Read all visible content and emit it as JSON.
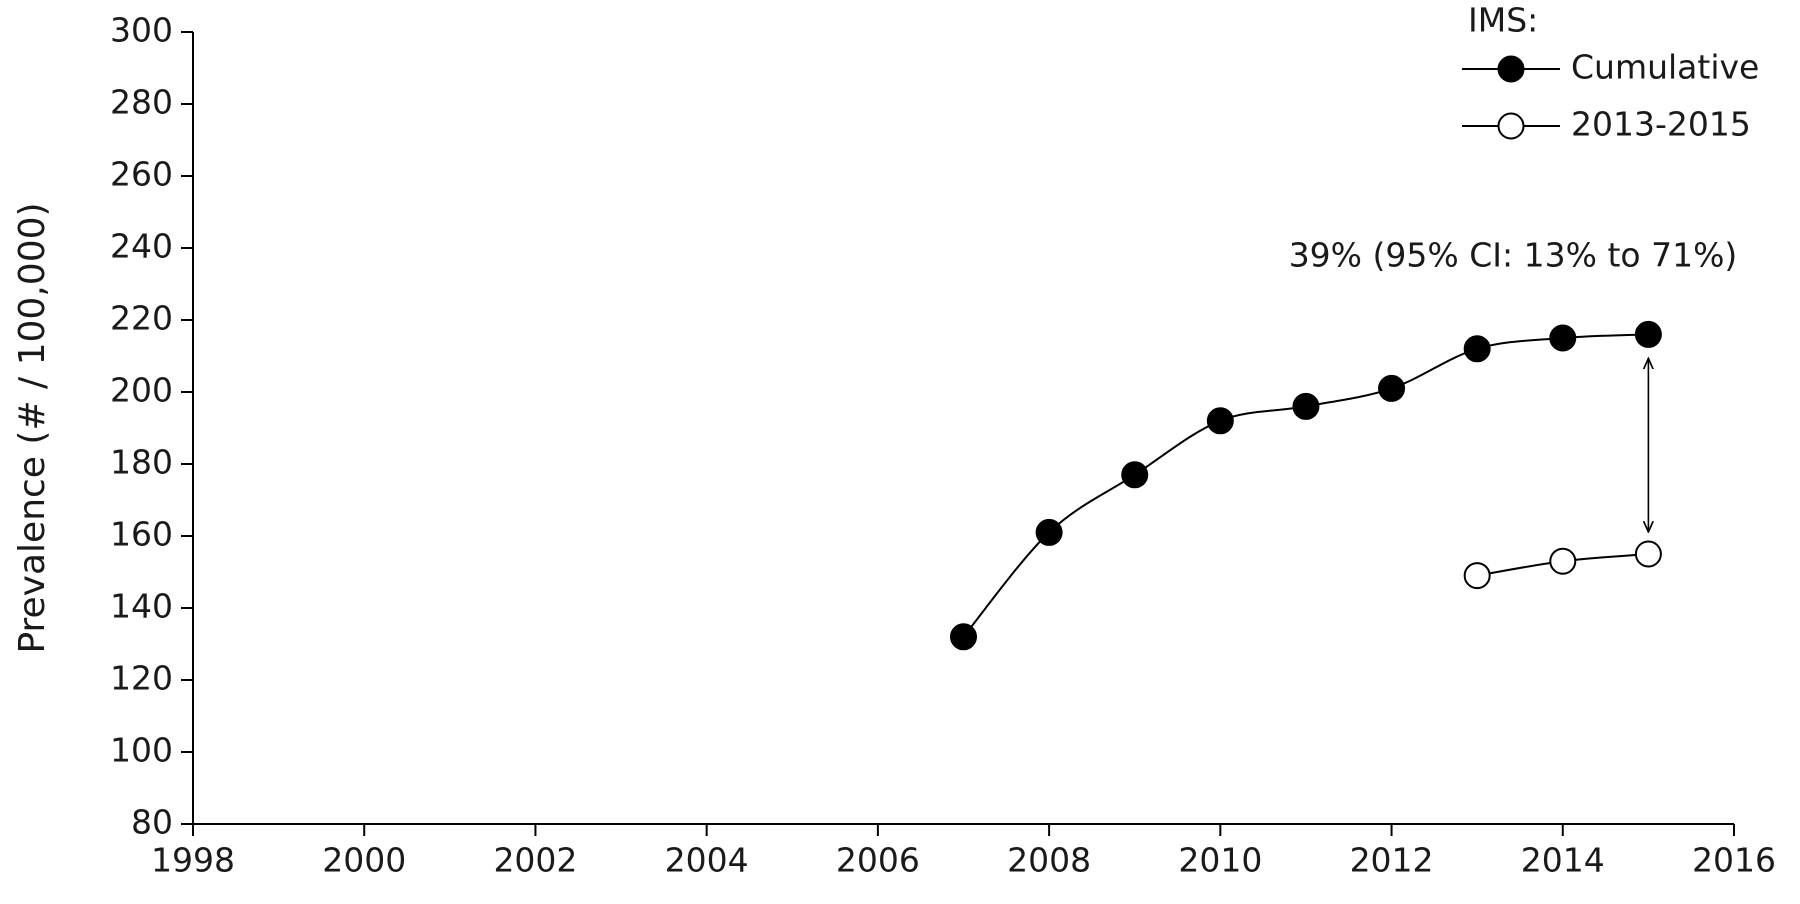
{
  "chart_data": {
    "type": "line",
    "y_axis_label": "Prevalence (# / 100,000)",
    "legend_title": "IMS:",
    "legend_position": "top-right",
    "annotation": "39% (95% CI: 13% to 71%)",
    "x": [
      2007,
      2008,
      2009,
      2010,
      2011,
      2012,
      2013,
      2014,
      2015
    ],
    "series": [
      {
        "name": "Cumulative",
        "color": "#000000",
        "marker_fill": "#000000",
        "values": [
          132,
          161,
          177,
          192,
          196,
          201,
          212,
          215,
          216
        ]
      },
      {
        "name": "2013-2015",
        "color": "#000000",
        "marker_fill": "#ffffff",
        "values": [
          null,
          null,
          null,
          null,
          null,
          null,
          149,
          153,
          155
        ]
      }
    ],
    "xlim": [
      1998,
      2016
    ],
    "xticks": [
      1998,
      2000,
      2002,
      2004,
      2006,
      2008,
      2010,
      2012,
      2014,
      2016
    ],
    "ylim": [
      80,
      300
    ],
    "yticks": [
      80,
      100,
      120,
      140,
      160,
      180,
      200,
      220,
      240,
      260,
      280,
      300
    ],
    "grid": false
  }
}
